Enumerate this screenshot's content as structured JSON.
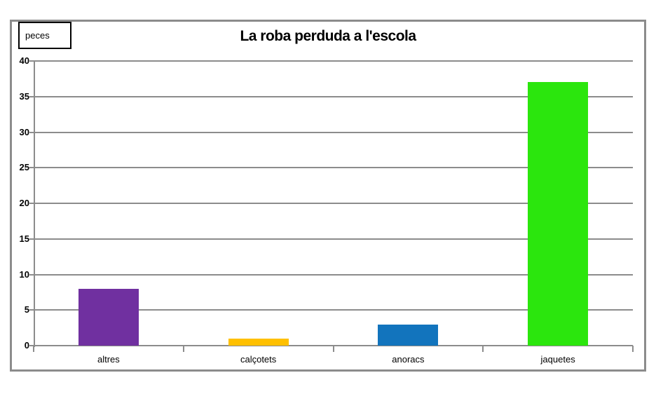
{
  "chart_data": {
    "type": "bar",
    "title": "La roba perduda a l'escola",
    "legend": "peces",
    "legend_position": "top-left",
    "categories": [
      "altres",
      "calçotets",
      "anoracs",
      "jaquetes"
    ],
    "values": [
      8,
      1,
      3,
      37
    ],
    "bar_colors": [
      "#7030A0",
      "#FFC000",
      "#1274BD",
      "#2BE60D"
    ],
    "ylim": [
      0,
      40
    ],
    "yticks": [
      0,
      5,
      10,
      15,
      20,
      25,
      30,
      35,
      40
    ],
    "xlabel": "",
    "ylabel": "peces",
    "grid": true,
    "gridline_color": "#8c8c8c",
    "frame_border_color": "#8c8c8c",
    "legend_border_color": "#000000",
    "background_color": "#ffffff"
  }
}
